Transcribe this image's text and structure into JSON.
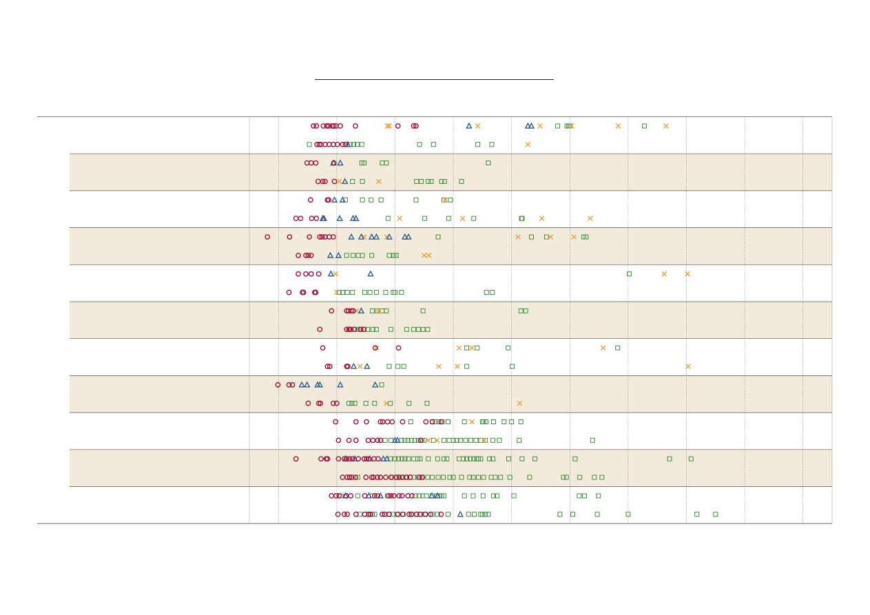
{
  "chart_data": {
    "type": "scatter",
    "title": "",
    "xlabel": "",
    "ylabel": "",
    "x_range": [
      0,
      1000
    ],
    "x_gridlines": [
      50,
      150,
      250,
      350,
      450,
      550,
      650,
      750,
      850,
      950
    ],
    "grid": true,
    "legend": "none",
    "colors": {
      "circle": "#a3123a",
      "triangle": "#2f5f8a",
      "square": "#3e8f3e",
      "cross": "#e8a13a",
      "band": "#f2ebdc",
      "separator": "#555555",
      "gridline": "#888888"
    },
    "groups": [
      {
        "shaded": false,
        "rows": [
          {
            "circle": [
              110,
              115,
              127,
              133,
              136,
              142,
              145,
              149,
              156,
              182,
              255,
              282,
              286
            ],
            "triangle": [
              377,
              478,
              484
            ],
            "square": [
              529,
              545,
              548,
              550,
              678
            ],
            "cross": [
              237,
              240,
              392,
              499,
              553,
              633,
              715
            ]
          },
          {
            "circle": [
              116,
              120,
              123,
              130,
              137,
              144,
              151,
              160,
              165
            ],
            "triangle": [
              169
            ],
            "square": [
              103,
              173,
              179,
              185,
              193,
              292,
              316,
              392,
              416
            ],
            "cross": [
              478
            ]
          }
        ]
      },
      {
        "shaded": true,
        "rows": [
          {
            "circle": [
              99,
              106,
              114,
              145
            ],
            "triangle": [
              144,
              156
            ],
            "square": [
              193,
              197,
              228,
              235,
              410
            ],
            "cross": []
          },
          {
            "circle": [
              118,
              126,
              130,
              146
            ],
            "triangle": [
              164
            ],
            "square": [
              177,
              194,
              287,
              295,
              307,
              312,
              330,
              335,
              364
            ],
            "cross": [
              222,
              154
            ]
          },
          {}
        ]
      },
      {
        "shaded": false,
        "rows": [
          {
            "circle": [
              105,
              134,
              136
            ],
            "triangle": [
              146,
              160
            ],
            "square": [
              165,
              194,
              209,
              226,
              286,
              334,
              345
            ],
            "cross": [
              336
            ]
          },
          {
            "circle": [
              80,
              88,
              107,
              115
            ],
            "triangle": [
              126,
              128,
              155,
              178,
              183
            ],
            "square": [
              238,
              301,
              342,
              385,
              467,
              468
            ],
            "cross": [
              258,
              366,
              502,
              585
            ]
          }
        ]
      },
      {
        "shaded": true,
        "rows": [
          {
            "circle": [
              31,
              69,
              103,
              121,
              125,
              130,
              137,
              144
            ],
            "triangle": [
              175,
              192,
              210,
              218,
              240,
              267,
              273
            ],
            "square": [
              324,
              484,
              510,
              574,
              578
            ],
            "cross": [
              197,
              236,
              461,
              517,
              557
            ]
          },
          {
            "circle": [
              84,
              97,
              101,
              106
            ],
            "triangle": [
              139,
              153
            ],
            "square": [
              167,
              178,
              187,
              194,
              210,
              240,
              248,
              252
            ],
            "cross": [
              300,
              308
            ]
          }
        ]
      },
      {
        "shaded": false,
        "rows": [
          {
            "circle": [
              84,
              97,
              106,
              119
            ],
            "triangle": [
              140,
              208
            ],
            "square": [
              652
            ],
            "cross": [
              148,
              712,
              752
            ]
          },
          {
            "circle": [
              68,
              91,
              93,
              112,
              114
            ],
            "triangle": [],
            "square": [
              154,
              160,
              168,
              177,
              198,
              207,
              218,
              234,
              247,
              250,
              261,
              407,
              417
            ],
            "cross": [
              150
            ]
          }
        ]
      },
      {
        "shaded": true,
        "rows": [
          {
            "circle": [
              141,
              167,
              170,
              175,
              178
            ],
            "triangle": [
              192
            ],
            "square": [
              211,
              220,
              228,
              235,
              298,
              466,
              474
            ],
            "cross": [
              184,
              222
            ]
          },
          {
            "circle": [
              121,
              167,
              171,
              173,
              180,
              191,
              196
            ],
            "triangle": [],
            "square": [
              175,
              186,
              189,
              197,
              203,
              212,
              218,
              243,
              270,
              282,
              290,
              298,
              306
            ],
            "cross": []
          }
        ]
      },
      {
        "shaded": false,
        "rows": [
          {
            "circle": [
              126,
              216,
              256
            ],
            "triangle": [],
            "square": [
              373,
              391,
              444,
              632
            ],
            "cross": [
              218,
              360,
              382,
              607
            ]
          },
          {
            "circle": [
              134,
              138,
              167,
              169
            ],
            "triangle": [
              179,
              202
            ],
            "square": [
              240,
              255,
              265,
              373,
              451
            ],
            "cross": [
              190,
              325,
              357,
              753
            ]
          }
        ]
      },
      {
        "shaded": true,
        "rows": [
          {
            "circle": [
              49,
              68,
              74
            ],
            "triangle": [
              90,
              99,
              117,
              121,
              156,
              216
            ],
            "square": [
              227
            ],
            "cross": []
          },
          {
            "circle": [
              101,
              119,
              122,
              144,
              150
            ],
            "triangle": [],
            "square": [
              171,
              176,
              181,
              200,
              215,
              242,
              274,
              305
            ],
            "cross": [
              235,
              464
            ]
          }
        ]
      },
      {
        "shaded": false,
        "rows": [
          {
            "circle": [
              148,
              183,
              201,
              225,
              229,
              237,
              245,
              263,
              303,
              314,
              329
            ],
            "triangle": [],
            "square": [
              277,
              314,
              319,
              325,
              331,
              341,
              369,
              400,
              402,
              406,
              419,
              437,
              450,
              466
            ],
            "cross": [
              382
            ]
          },
          {
            "circle": [
              153,
              171,
              183,
              204,
              212,
              220,
              225,
              294
            ],
            "triangle": [
              250,
              254
            ],
            "square": [
              233,
              243,
              261,
              267,
              272,
              278,
              284,
              290,
              296,
              300,
              316,
              334,
              343,
              350,
              356,
              362,
              371,
              380,
              389,
              397,
              405,
              418,
              429,
              463,
              589
            ],
            "cross": [
              307,
              322,
              403
            ]
          }
        ]
      },
      {
        "shaded": true,
        "rows": [
          {
            "circle": [
              80,
              123,
              132,
              134,
              153,
              163,
              167,
              172,
              177,
              187,
              197,
              201,
              205,
              214,
              221
            ],
            "triangle": [
              165,
              181,
              207,
              230,
              236
            ],
            "square": [
              242,
              250,
              256,
              262,
              267,
              273,
              282,
              289,
              293,
              307,
              323,
              334,
              339,
              360,
              367,
              373,
              379,
              385,
              390,
              393,
              397,
              412,
              418,
              445,
              468,
              490,
              559,
              721,
              758
            ],
            "cross": []
          },
          {
            "circle": [
              160,
              168,
              172,
              176,
              182,
              200,
              210,
              213,
              220,
              225,
              234,
              243,
              252,
              257,
              263,
              270,
              276,
              292,
              297
            ],
            "triangle": [],
            "square": [
              186,
              245,
              253,
              262,
              268,
              276,
              283,
              289,
              296,
              306,
              314,
              324,
              333,
              344,
              350,
              364,
              378,
              384,
              393,
              402,
              415,
              422,
              431,
              447,
              481,
              539,
              544,
              567,
              592,
              605
            ],
            "cross": []
          }
        ]
      },
      {
        "shaded": false,
        "rows": [
          {
            "circle": [
              141,
              149,
              154,
              166,
              174,
              198,
              215,
              220,
              239,
              243,
              248,
              257,
              262,
              272,
              279
            ],
            "triangle": [
              165,
              205,
              225,
              313,
              323
            ],
            "square": [
              157,
              186,
              211,
              237,
              284,
              292,
              297,
              304,
              314,
              322,
              326,
              330,
              334,
              369,
              384,
              401,
              419,
              425,
              454,
              566,
              575,
              599
            ],
            "cross": []
          },
          {
            "circle": [
              152,
              163,
              168,
              183,
              198,
              205,
              208,
              228,
              232,
              240,
              255,
              263,
              274,
              278,
              287,
              293,
              302,
              311,
              329
            ],
            "triangle": [
              362
            ],
            "square": [
              190,
              205,
              211,
              215,
              239,
              247,
              253,
              264,
              278,
              287,
              294,
              302,
              314,
              323,
              341,
              376,
              386,
              397,
              400,
              405,
              410,
              533,
              555,
              597,
              650,
              768,
              800
            ],
            "cross": []
          }
        ]
      }
    ]
  }
}
